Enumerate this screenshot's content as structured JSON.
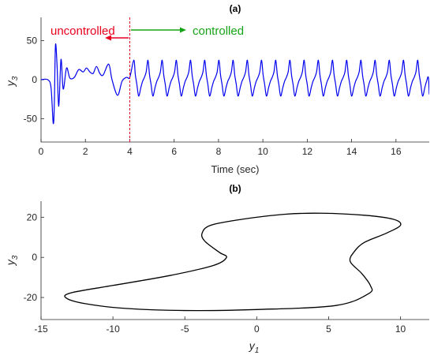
{
  "chart_data": [
    {
      "type": "line",
      "title": "(a)",
      "xlabel": "Time (sec)",
      "ylabel_main": "y",
      "ylabel_sub": "3",
      "xlim": [
        0,
        17.5
      ],
      "ylim": [
        -80,
        80
      ],
      "x_ticks": [
        0,
        2,
        4,
        6,
        8,
        10,
        12,
        14,
        16
      ],
      "y_ticks": [
        -50,
        0,
        50
      ],
      "grid": false,
      "line_color": "#0000ee",
      "switch_time": 4,
      "switch_line_color": "#e8001c",
      "annotations": {
        "uncontrolled": {
          "text": "uncontrolled",
          "color": "#e8001c"
        },
        "controlled": {
          "text": "controlled",
          "color": "#17a317"
        }
      },
      "series": [
        {
          "segments": {
            "uncontrolled": [
              [
                0,
                0
              ],
              [
                0.3,
                0
              ],
              [
                0.45,
                -10
              ],
              [
                0.55,
                -56
              ],
              [
                0.6,
                -30
              ],
              [
                0.65,
                44
              ],
              [
                0.72,
                20
              ],
              [
                0.8,
                -34
              ],
              [
                0.9,
                26
              ],
              [
                1.0,
                -12
              ],
              [
                1.15,
                15
              ],
              [
                1.3,
                2
              ],
              [
                1.5,
                3
              ],
              [
                1.7,
                13
              ],
              [
                1.9,
                10
              ],
              [
                2.05,
                15
              ],
              [
                2.2,
                10
              ],
              [
                2.35,
                8
              ],
              [
                2.5,
                17
              ],
              [
                2.65,
                8
              ],
              [
                2.8,
                6
              ],
              [
                3.05,
                20
              ],
              [
                3.2,
                0
              ],
              [
                3.45,
                -20
              ],
              [
                3.65,
                -2
              ],
              [
                3.85,
                3
              ],
              [
                4.0,
                3
              ]
            ],
            "controlled": {
              "start": 4.0,
              "end": 17.5,
              "period": 0.64,
              "peak": 25,
              "trough": -21
            }
          }
        }
      ]
    },
    {
      "type": "line",
      "title": "(b)",
      "xlabel_main": "y",
      "xlabel_sub": "1",
      "ylabel_main": "y",
      "ylabel_sub": "3",
      "xlim": [
        -15,
        12
      ],
      "ylim": [
        -31,
        28
      ],
      "x_ticks": [
        -15,
        -10,
        -5,
        0,
        5,
        10
      ],
      "y_ticks": [
        -20,
        0,
        20
      ],
      "grid": false,
      "line_color": "#000000",
      "series": [
        {
          "closed": true,
          "x": [
            4.5,
            7.5,
            9.5,
            10,
            9.0,
            7.5,
            6.8,
            6.5,
            7.3,
            7.9,
            7.8,
            5.5,
            0,
            -5,
            -9,
            -12,
            -13.3,
            -12.8,
            -10,
            -6,
            -3,
            -2.1,
            -2.6,
            -3.6,
            -3.8,
            -3.2,
            -1,
            2
          ],
          "y": [
            22,
            21,
            19,
            16,
            12,
            7.5,
            3,
            -2,
            -8,
            -14,
            -18,
            -24,
            -26,
            -26.5,
            -25.5,
            -23,
            -20,
            -17.5,
            -14,
            -9,
            -4,
            0,
            2.5,
            8,
            12,
            16,
            19,
            21.5
          ]
        }
      ]
    }
  ]
}
